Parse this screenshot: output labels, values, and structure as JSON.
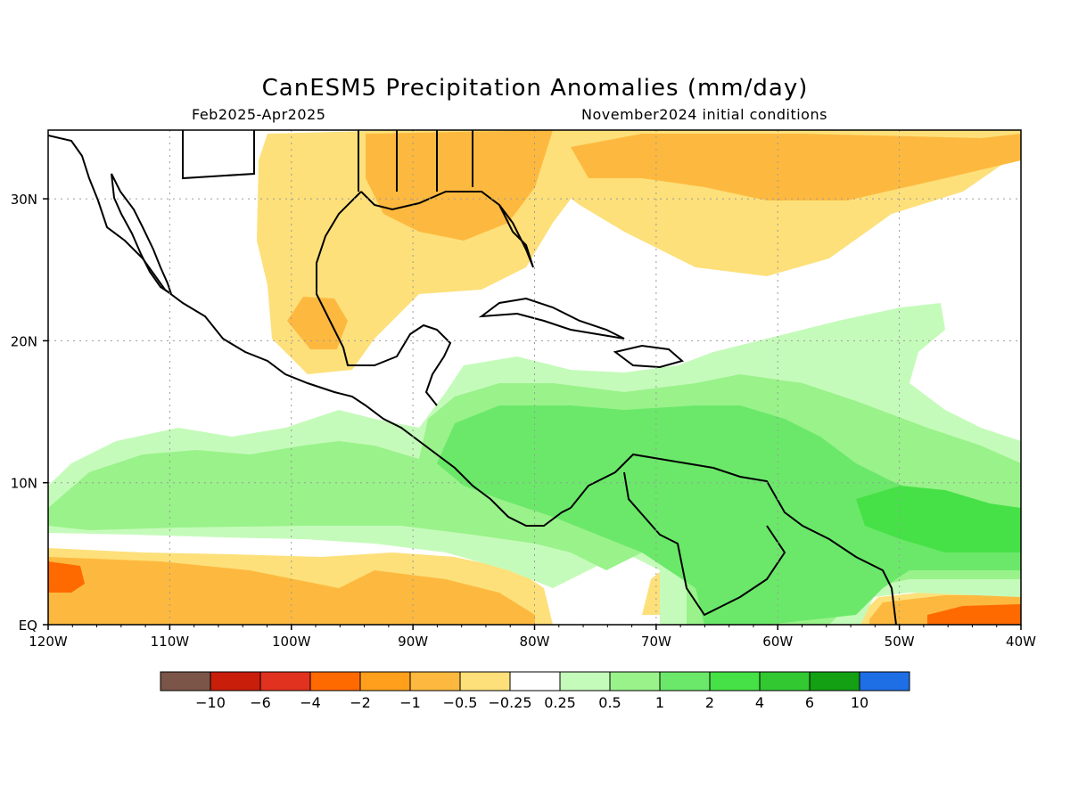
{
  "title": "CanESM5 Precipitation Anomalies (mm/day)",
  "subtitle_left": "Feb2025-Apr2025",
  "subtitle_right": "November2024 initial conditions",
  "axes": {
    "lon_labels": [
      "120W",
      "110W",
      "100W",
      "90W",
      "80W",
      "70W",
      "60W",
      "50W",
      "40W"
    ],
    "lat_labels": [
      "EQ",
      "10N",
      "20N",
      "30N"
    ]
  },
  "colorbar": {
    "labels": [
      "-10",
      "-6",
      "-4",
      "-2",
      "-1",
      "-0.5",
      "-0.25",
      "0.25",
      "0.5",
      "1",
      "2",
      "4",
      "6",
      "10"
    ],
    "colors": [
      "#7a5548",
      "#c81e0a",
      "#e0321e",
      "#ff6a00",
      "#ff9f1c",
      "#fdb93f",
      "#fde07a",
      "#ffffff",
      "#c5fbba",
      "#99f28a",
      "#6be86a",
      "#46e146",
      "#32c832",
      "#13a013",
      "#1e6fe6"
    ]
  },
  "colors": {
    "land_outline": "#000000",
    "grid": "#9a9a9a",
    "neg_light": "#fde07a",
    "neg_mid": "#fdb93f",
    "neg_strong": "#ff6a00",
    "pos_light": "#c5fbba",
    "pos_mid": "#99f28a",
    "pos_strong": "#6be86a",
    "pos_stronger": "#46e146"
  }
}
